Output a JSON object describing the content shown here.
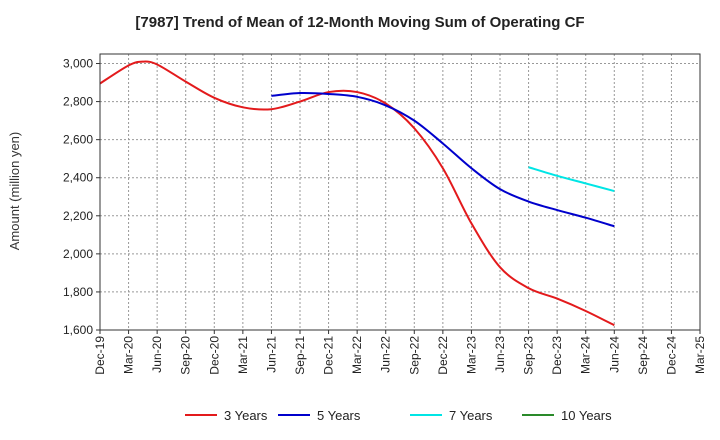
{
  "chart_data": {
    "type": "line",
    "title": "[7987]  Trend of Mean of 12-Month Moving Sum of Operating CF",
    "xlabel": "",
    "ylabel": "Amount (million yen)",
    "ylim": [
      1600,
      3050
    ],
    "yticks": [
      1600,
      1800,
      2000,
      2200,
      2400,
      2600,
      2800,
      3000
    ],
    "ytick_labels": [
      "1,600",
      "1,800",
      "2,000",
      "2,200",
      "2,400",
      "2,600",
      "2,800",
      "3,000"
    ],
    "x_labels": [
      "Dec-19",
      "Mar-20",
      "Jun-20",
      "Sep-20",
      "Dec-20",
      "Mar-21",
      "Jun-21",
      "Sep-21",
      "Dec-21",
      "Mar-22",
      "Jun-22",
      "Sep-22",
      "Dec-22",
      "Mar-23",
      "Jun-23",
      "Sep-23",
      "Dec-23",
      "Mar-24",
      "Jun-24",
      "Sep-24",
      "Dec-24",
      "Mar-25"
    ],
    "grid": true,
    "legend_position": "bottom",
    "series": [
      {
        "name": "3 Years",
        "color": "#e31a1c",
        "points": [
          [
            0,
            2895
          ],
          [
            1,
            2990
          ],
          [
            1.5,
            3010
          ],
          [
            2,
            2995
          ],
          [
            3,
            2905
          ],
          [
            4,
            2820
          ],
          [
            5,
            2770
          ],
          [
            6,
            2760
          ],
          [
            7,
            2800
          ],
          [
            8,
            2850
          ],
          [
            9,
            2850
          ],
          [
            10,
            2790
          ],
          [
            11,
            2660
          ],
          [
            12,
            2450
          ],
          [
            13,
            2160
          ],
          [
            14,
            1930
          ],
          [
            15,
            1820
          ],
          [
            16,
            1765
          ],
          [
            17,
            1700
          ],
          [
            18,
            1625
          ]
        ]
      },
      {
        "name": "5 Years",
        "color": "#0000cc",
        "points": [
          [
            6,
            2830
          ],
          [
            7,
            2845
          ],
          [
            8,
            2840
          ],
          [
            9,
            2825
          ],
          [
            10,
            2780
          ],
          [
            11,
            2700
          ],
          [
            12,
            2580
          ],
          [
            13,
            2450
          ],
          [
            14,
            2340
          ],
          [
            15,
            2275
          ],
          [
            16,
            2230
          ],
          [
            17,
            2190
          ],
          [
            18,
            2145
          ]
        ]
      },
      {
        "name": "7 Years",
        "color": "#00e5e5",
        "points": [
          [
            15,
            2455
          ],
          [
            16,
            2410
          ],
          [
            17,
            2370
          ],
          [
            18,
            2330
          ]
        ]
      },
      {
        "name": "10 Years",
        "color": "#2a8a2a",
        "points": []
      }
    ]
  }
}
